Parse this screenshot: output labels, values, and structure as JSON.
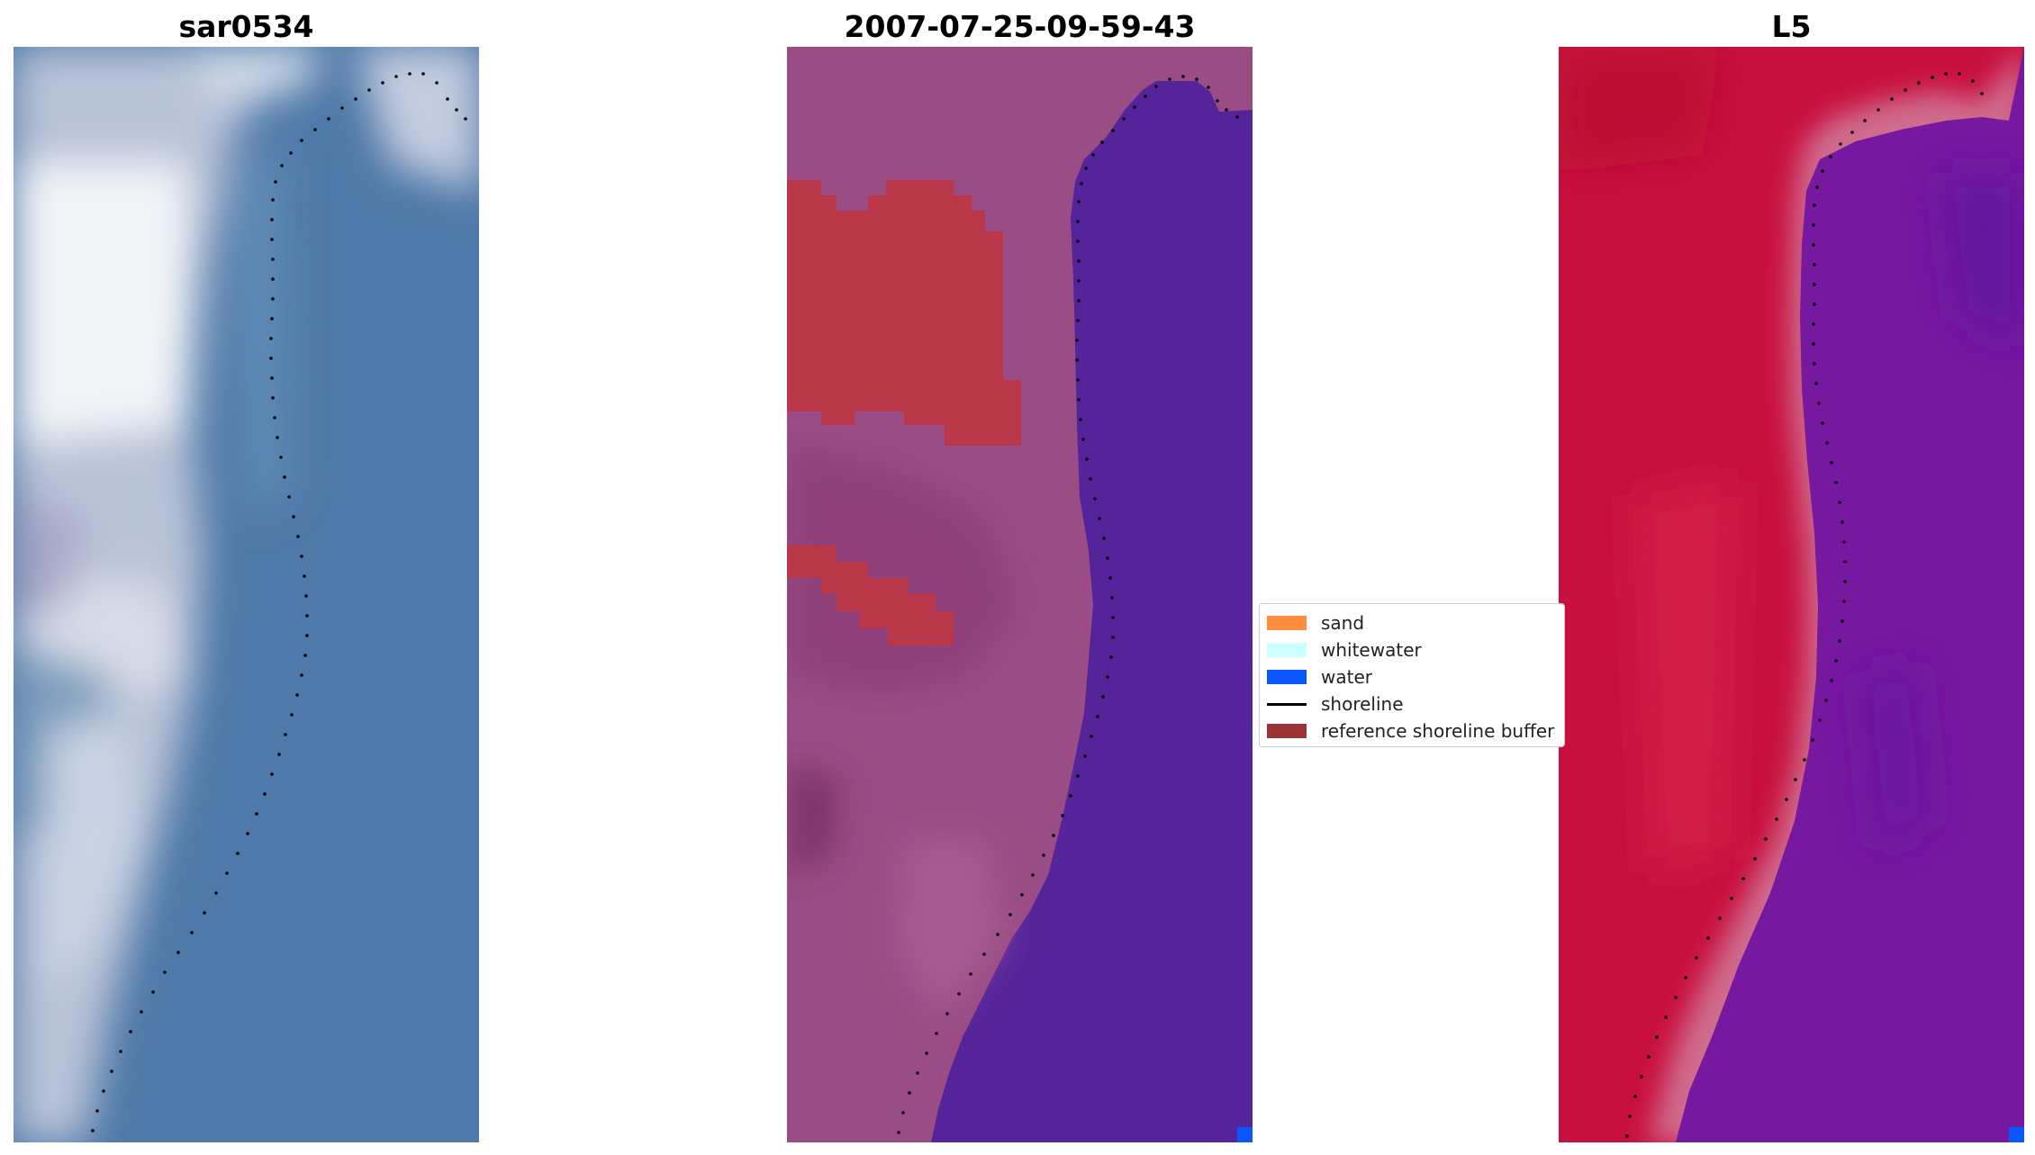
{
  "panels": [
    {
      "title": "sar0534"
    },
    {
      "title": "2007-07-25-09-59-43"
    },
    {
      "title": "L5"
    }
  ],
  "legend": {
    "items": [
      {
        "label": "sand",
        "color": "#ff8c3f",
        "kind": "patch"
      },
      {
        "label": "whitewater",
        "color": "#ccffff",
        "kind": "patch"
      },
      {
        "label": "water",
        "color": "#0a56ff",
        "kind": "patch"
      },
      {
        "label": "shoreline",
        "color": "#000000",
        "kind": "line"
      },
      {
        "label": "reference shoreline buffer",
        "color": "#9b3535",
        "kind": "patch"
      }
    ]
  },
  "colors": {
    "rgb_sand_light": "#c8d2e2",
    "rgb_water": "#4f79a8",
    "classified_land": "#9a4c84",
    "classified_water": "#55249a",
    "classified_buffer": "#b93748",
    "nir_land": "#c8103e",
    "nir_water": "#7718a0",
    "shoreline_dots": "#000000"
  }
}
